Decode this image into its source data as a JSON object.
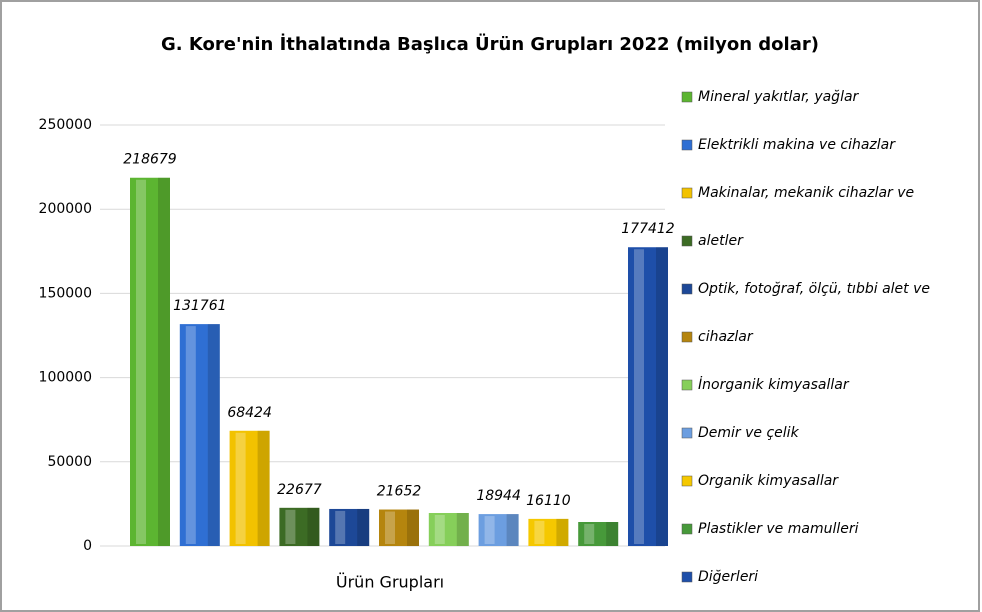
{
  "chart_data": {
    "type": "bar",
    "title": "G. Kore'nin İthalatında Başlıca Ürün Grupları 2022 (milyon dolar)",
    "x_label": "Ürün Grupları",
    "ylim": [
      0,
      250000
    ],
    "yticks": [
      0,
      50000,
      100000,
      150000,
      200000,
      250000
    ],
    "grid": true,
    "series": [
      {
        "name": "Mineral yakıtlar, yağlar",
        "color": "#5cb531",
        "values": [
          218679
        ],
        "show_label": true
      },
      {
        "name": "Elektrikli  makina ve cihazlar",
        "color": "#2f6fd3",
        "values": [
          131761
        ],
        "show_label": true
      },
      {
        "name": "Makinalar, mekanik cihazlar ve",
        "color": "#f2c200",
        "values": [
          68424
        ],
        "show_label": true
      },
      {
        "name": "aletler",
        "color": "#3c6b24",
        "values": [
          22677
        ],
        "show_label": true
      },
      {
        "name": "Optik, fotoğraf, ölçü, tıbbi alet ve",
        "color": "#1d4897",
        "values": [
          22000
        ],
        "show_label": false
      },
      {
        "name": "cihazlar",
        "color": "#b5850e",
        "values": [
          21652
        ],
        "show_label": true
      },
      {
        "name": "İnorganik kimyasallar",
        "color": "#86cf5a",
        "values": [
          19600
        ],
        "show_label": false
      },
      {
        "name": "Demir ve çelik",
        "color": "#6c9ee0",
        "values": [
          18944
        ],
        "show_label": true
      },
      {
        "name": "Organik kimyasallar",
        "color": "#f5c800",
        "values": [
          16110
        ],
        "show_label": true
      },
      {
        "name": "Plastikler ve mamulleri",
        "color": "#47993a",
        "values": [
          14250
        ],
        "show_label": false
      },
      {
        "name": "Diğerleri",
        "color": "#1e4fa9",
        "values": [
          177412
        ],
        "show_label": true
      }
    ]
  }
}
